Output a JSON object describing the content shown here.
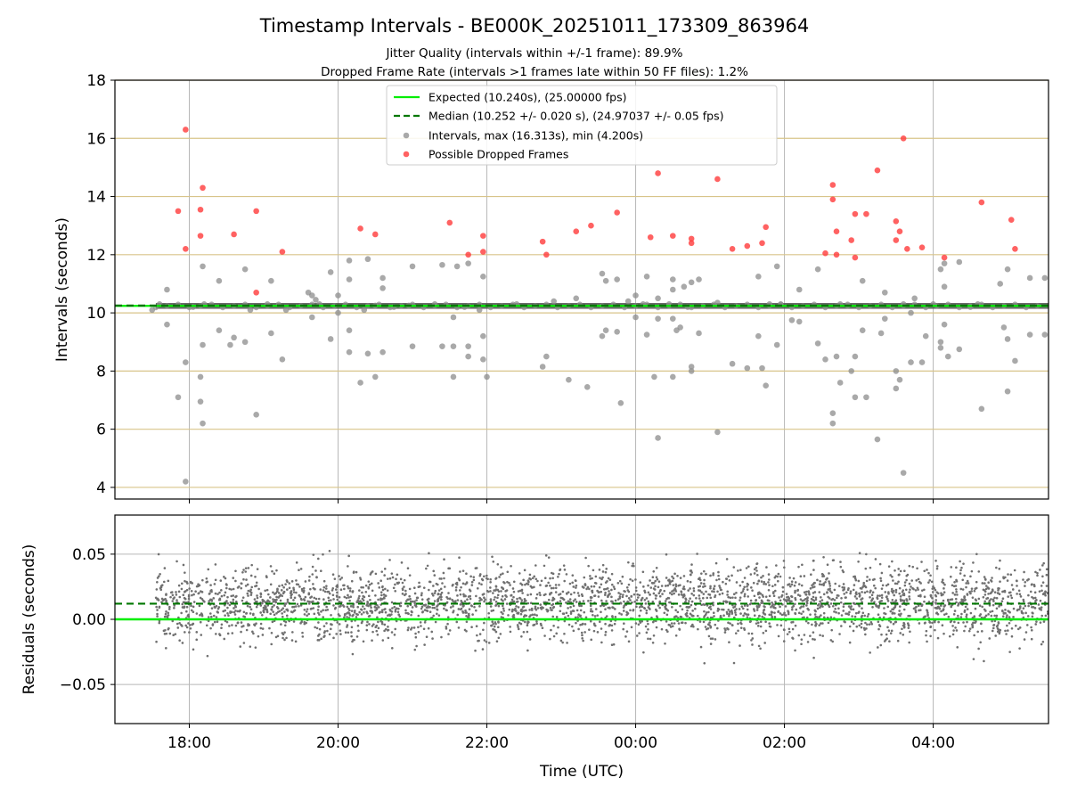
{
  "chart_data": {
    "title": "Timestamp Intervals - BE000K_20251011_173309_863964",
    "subtitle_line1": "Jitter Quality (intervals within +/-1 frame): 89.9%",
    "subtitle_line2": "Dropped Frame Rate (intervals >1 frames late within 50 FF files): 1.2%",
    "top_panel": {
      "type": "scatter",
      "ylabel": "Intervals (seconds)",
      "xlim_hours": [
        17.0,
        29.55
      ],
      "ylim": [
        3.6,
        18.0
      ],
      "yticks": [
        4,
        6,
        8,
        10,
        12,
        14,
        16,
        18
      ],
      "expected_interval": 10.24,
      "median_interval": 10.252,
      "legend": {
        "placement": "upper-center",
        "expected": "Expected (10.240s), (25.00000 fps)",
        "median": "Median (10.252 +/- 0.020 s), (24.97037 +/- 0.05 fps)",
        "intervals": "Intervals, max (16.313s), min (4.200s)",
        "dropped": "Possible Dropped Frames"
      },
      "dropped_points": [
        [
          17.85,
          13.5
        ],
        [
          17.95,
          16.3
        ],
        [
          17.95,
          12.2
        ],
        [
          18.15,
          13.55
        ],
        [
          18.15,
          12.65
        ],
        [
          18.18,
          14.3
        ],
        [
          18.6,
          12.7
        ],
        [
          18.9,
          13.5
        ],
        [
          18.9,
          10.7
        ],
        [
          19.25,
          12.1
        ],
        [
          20.3,
          12.9
        ],
        [
          20.5,
          12.7
        ],
        [
          21.5,
          13.1
        ],
        [
          21.75,
          12.0
        ],
        [
          21.95,
          12.1
        ],
        [
          21.95,
          12.65
        ],
        [
          22.75,
          12.45
        ],
        [
          22.8,
          12.0
        ],
        [
          23.2,
          12.8
        ],
        [
          23.4,
          13.0
        ],
        [
          23.75,
          13.45
        ],
        [
          24.2,
          12.6
        ],
        [
          24.3,
          14.8
        ],
        [
          24.5,
          12.65
        ],
        [
          24.75,
          12.4
        ],
        [
          24.75,
          12.55
        ],
        [
          25.1,
          14.6
        ],
        [
          25.3,
          12.2
        ],
        [
          25.5,
          12.3
        ],
        [
          25.7,
          12.4
        ],
        [
          25.75,
          12.95
        ],
        [
          26.55,
          12.05
        ],
        [
          26.65,
          14.4
        ],
        [
          26.65,
          13.9
        ],
        [
          26.7,
          12.8
        ],
        [
          26.7,
          12.0
        ],
        [
          26.9,
          12.5
        ],
        [
          26.95,
          11.9
        ],
        [
          26.95,
          13.4
        ],
        [
          27.1,
          13.4
        ],
        [
          27.25,
          14.9
        ],
        [
          27.5,
          13.15
        ],
        [
          27.5,
          12.5
        ],
        [
          27.55,
          12.8
        ],
        [
          27.6,
          16.0
        ],
        [
          27.65,
          12.2
        ],
        [
          27.85,
          12.25
        ],
        [
          28.15,
          11.9
        ],
        [
          28.65,
          13.8
        ],
        [
          29.05,
          13.2
        ],
        [
          29.1,
          12.2
        ]
      ],
      "interval_points": [
        [
          17.5,
          10.1
        ],
        [
          17.6,
          10.3
        ],
        [
          17.7,
          9.6
        ],
        [
          17.7,
          10.8
        ],
        [
          17.85,
          7.1
        ],
        [
          17.95,
          8.3
        ],
        [
          17.95,
          4.2
        ],
        [
          18.05,
          10.2
        ],
        [
          18.15,
          7.8
        ],
        [
          18.15,
          6.95
        ],
        [
          18.18,
          6.2
        ],
        [
          18.18,
          8.9
        ],
        [
          18.18,
          11.6
        ],
        [
          18.2,
          10.3
        ],
        [
          18.4,
          9.4
        ],
        [
          18.4,
          11.1
        ],
        [
          18.55,
          8.9
        ],
        [
          18.6,
          9.15
        ],
        [
          18.75,
          9.0
        ],
        [
          18.75,
          11.5
        ],
        [
          18.82,
          10.1
        ],
        [
          18.9,
          6.5
        ],
        [
          19.05,
          10.3
        ],
        [
          19.1,
          9.3
        ],
        [
          19.1,
          11.1
        ],
        [
          19.25,
          8.4
        ],
        [
          19.3,
          10.1
        ],
        [
          19.6,
          10.7
        ],
        [
          19.65,
          10.6
        ],
        [
          19.65,
          9.85
        ],
        [
          19.7,
          10.45
        ],
        [
          19.75,
          10.3
        ],
        [
          19.9,
          9.1
        ],
        [
          19.9,
          11.4
        ],
        [
          20.0,
          10.6
        ],
        [
          20.0,
          10.0
        ],
        [
          20.15,
          8.65
        ],
        [
          20.15,
          9.4
        ],
        [
          20.15,
          11.15
        ],
        [
          20.15,
          11.8
        ],
        [
          20.3,
          7.6
        ],
        [
          20.35,
          10.1
        ],
        [
          20.4,
          8.6
        ],
        [
          20.4,
          11.85
        ],
        [
          20.5,
          7.8
        ],
        [
          20.5,
          10.25
        ],
        [
          20.6,
          10.85
        ],
        [
          20.6,
          11.2
        ],
        [
          20.6,
          8.65
        ],
        [
          20.75,
          10.2
        ],
        [
          20.95,
          10.25
        ],
        [
          21.0,
          8.85
        ],
        [
          21.0,
          11.6
        ],
        [
          21.3,
          10.3
        ],
        [
          21.4,
          8.85
        ],
        [
          21.4,
          11.65
        ],
        [
          21.55,
          7.8
        ],
        [
          21.55,
          9.85
        ],
        [
          21.55,
          8.85
        ],
        [
          21.6,
          11.6
        ],
        [
          21.7,
          10.2
        ],
        [
          21.75,
          8.5
        ],
        [
          21.75,
          8.85
        ],
        [
          21.75,
          11.7
        ],
        [
          21.9,
          10.1
        ],
        [
          21.95,
          9.2
        ],
        [
          21.95,
          8.4
        ],
        [
          21.95,
          11.25
        ],
        [
          22.0,
          7.8
        ],
        [
          22.4,
          10.3
        ],
        [
          22.75,
          8.15
        ],
        [
          22.8,
          8.5
        ],
        [
          22.9,
          10.4
        ],
        [
          23.1,
          7.7
        ],
        [
          23.2,
          10.5
        ],
        [
          23.35,
          7.45
        ],
        [
          23.55,
          11.35
        ],
        [
          23.55,
          9.2
        ],
        [
          23.6,
          11.1
        ],
        [
          23.6,
          9.4
        ],
        [
          23.75,
          11.15
        ],
        [
          23.75,
          9.35
        ],
        [
          23.8,
          6.9
        ],
        [
          23.9,
          10.4
        ],
        [
          24.0,
          10.6
        ],
        [
          24.0,
          9.85
        ],
        [
          24.1,
          10.3
        ],
        [
          24.15,
          11.25
        ],
        [
          24.15,
          9.25
        ],
        [
          24.25,
          7.8
        ],
        [
          24.3,
          5.7
        ],
        [
          24.3,
          9.8
        ],
        [
          24.3,
          10.5
        ],
        [
          24.45,
          10.3
        ],
        [
          24.5,
          7.8
        ],
        [
          24.5,
          9.8
        ],
        [
          24.5,
          10.8
        ],
        [
          24.5,
          11.15
        ],
        [
          24.55,
          9.4
        ],
        [
          24.6,
          9.5
        ],
        [
          24.65,
          10.9
        ],
        [
          24.7,
          10.2
        ],
        [
          24.75,
          8.15
        ],
        [
          24.75,
          8.0
        ],
        [
          24.75,
          11.05
        ],
        [
          24.85,
          9.3
        ],
        [
          24.85,
          11.15
        ],
        [
          25.1,
          10.35
        ],
        [
          25.1,
          5.9
        ],
        [
          25.3,
          8.25
        ],
        [
          25.5,
          8.1
        ],
        [
          25.65,
          11.25
        ],
        [
          25.65,
          9.2
        ],
        [
          25.7,
          8.1
        ],
        [
          25.75,
          7.5
        ],
        [
          25.8,
          10.3
        ],
        [
          25.9,
          8.9
        ],
        [
          25.9,
          11.6
        ],
        [
          25.95,
          10.3
        ],
        [
          26.1,
          9.75
        ],
        [
          26.2,
          10.8
        ],
        [
          26.2,
          9.7
        ],
        [
          26.45,
          8.95
        ],
        [
          26.45,
          11.5
        ],
        [
          26.55,
          8.4
        ],
        [
          26.65,
          6.55
        ],
        [
          26.65,
          6.2
        ],
        [
          26.7,
          8.5
        ],
        [
          26.75,
          7.6
        ],
        [
          26.75,
          10.3
        ],
        [
          26.85,
          10.25
        ],
        [
          26.9,
          8.0
        ],
        [
          26.95,
          7.1
        ],
        [
          26.95,
          8.5
        ],
        [
          27.05,
          11.1
        ],
        [
          27.05,
          9.4
        ],
        [
          27.1,
          7.1
        ],
        [
          27.25,
          5.65
        ],
        [
          27.3,
          9.3
        ],
        [
          27.35,
          10.7
        ],
        [
          27.35,
          9.8
        ],
        [
          27.5,
          8.0
        ],
        [
          27.5,
          7.4
        ],
        [
          27.55,
          7.7
        ],
        [
          27.6,
          4.5
        ],
        [
          27.6,
          10.3
        ],
        [
          27.7,
          8.3
        ],
        [
          27.7,
          10.0
        ],
        [
          27.75,
          10.5
        ],
        [
          27.85,
          8.3
        ],
        [
          27.9,
          9.2
        ],
        [
          28.0,
          10.3
        ],
        [
          28.1,
          11.5
        ],
        [
          28.1,
          9.0
        ],
        [
          28.1,
          8.8
        ],
        [
          28.15,
          10.9
        ],
        [
          28.15,
          11.7
        ],
        [
          28.15,
          9.6
        ],
        [
          28.2,
          8.5
        ],
        [
          28.35,
          11.75
        ],
        [
          28.35,
          8.75
        ],
        [
          28.5,
          10.2
        ],
        [
          28.6,
          10.3
        ],
        [
          28.65,
          6.7
        ],
        [
          28.9,
          11.0
        ],
        [
          28.95,
          9.5
        ],
        [
          29.0,
          11.5
        ],
        [
          29.0,
          9.1
        ],
        [
          29.0,
          7.3
        ],
        [
          29.1,
          8.35
        ],
        [
          29.3,
          9.25
        ],
        [
          29.3,
          11.2
        ],
        [
          29.5,
          11.2
        ],
        [
          29.5,
          9.25
        ]
      ]
    },
    "bottom_panel": {
      "type": "scatter",
      "xlabel": "Time (UTC)",
      "ylabel": "Residuals (seconds)",
      "ylim": [
        -0.08,
        0.08
      ],
      "yticks": [
        -0.05,
        0.0,
        0.05
      ],
      "ytick_labels": [
        "−0.05",
        "0.00",
        "0.05"
      ],
      "expected_residual": 0.0,
      "median_residual": 0.012,
      "x_start_hours": 17.55,
      "x_end_hours": 29.55,
      "residual_center": 0.012,
      "residual_spread": 0.02
    },
    "xticks_hours": [
      18,
      20,
      22,
      24,
      26,
      28
    ],
    "xtick_labels": [
      "18:00",
      "20:00",
      "22:00",
      "00:00",
      "02:00",
      "04:00"
    ],
    "colors": {
      "expected": "#00ee00",
      "median": "#007700",
      "intervals": "#8c8c8c",
      "dropped": "#ff3b3b",
      "residuals": "#707070",
      "grid_h_top": "#d8c48a",
      "grid": "#b8b8b8",
      "dense_band": "#4d4d4d"
    }
  }
}
